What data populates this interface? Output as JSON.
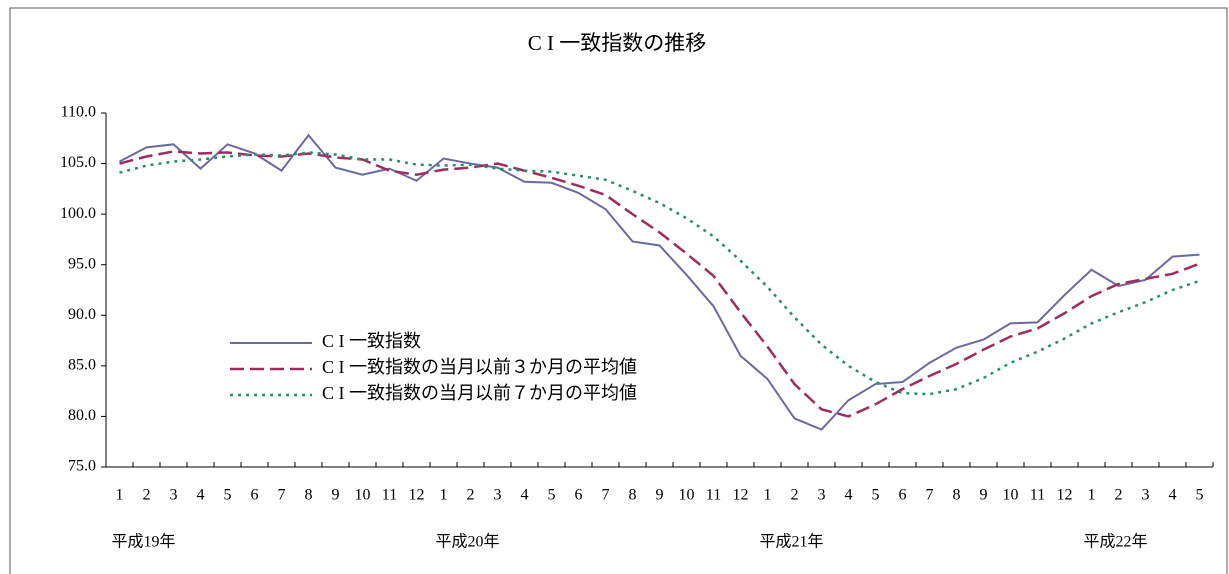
{
  "chart_data": {
    "type": "line",
    "title": "C I 一致指数の推移",
    "groups": [
      {
        "name": "平成19年",
        "months": [
          "1",
          "2",
          "3",
          "4",
          "5",
          "6",
          "7",
          "8",
          "9",
          "10",
          "11",
          "12"
        ]
      },
      {
        "name": "平成20年",
        "months": [
          "1",
          "2",
          "3",
          "4",
          "5",
          "6",
          "7",
          "8",
          "9",
          "10",
          "11",
          "12"
        ]
      },
      {
        "name": "平成21年",
        "months": [
          "1",
          "2",
          "3",
          "4",
          "5",
          "6",
          "7",
          "8",
          "9",
          "10",
          "11",
          "12"
        ]
      },
      {
        "name": "平成22年",
        "months": [
          "1",
          "2",
          "3",
          "4",
          "5"
        ]
      }
    ],
    "ylim": [
      75,
      110
    ],
    "yticks": [
      {
        "value": 75,
        "label": "75.0"
      },
      {
        "value": 80,
        "label": "80.0"
      },
      {
        "value": 85,
        "label": "85.0"
      },
      {
        "value": 90,
        "label": "90.0"
      },
      {
        "value": 95,
        "label": "95.0"
      },
      {
        "value": 100,
        "label": "100.0"
      },
      {
        "value": 105,
        "label": "105.0"
      },
      {
        "value": 110,
        "label": "110.0"
      }
    ],
    "grid": false,
    "legend": "center-left",
    "series": [
      {
        "name": "C I 一致指数",
        "color": "#6a6aa0",
        "dash": "solid",
        "values": [
          105.2,
          106.6,
          106.9,
          104.5,
          106.9,
          106.0,
          104.3,
          107.8,
          104.6,
          103.9,
          104.5,
          103.3,
          105.5,
          105.0,
          104.6,
          103.2,
          103.1,
          102.1,
          100.5,
          97.3,
          96.9,
          94.0,
          90.9,
          86.0,
          83.7,
          79.8,
          78.7,
          81.6,
          83.2,
          83.4,
          85.3,
          86.8,
          87.6,
          89.2,
          89.3,
          92.0,
          94.5,
          92.9,
          93.5,
          95.8,
          96.0
        ]
      },
      {
        "name": "C I 一致指数の当月以前３か月の平均値",
        "color": "#9b2d5f",
        "dash": "dashed",
        "values": [
          105.0,
          105.7,
          106.2,
          106.0,
          106.1,
          105.8,
          105.7,
          106.0,
          105.6,
          105.4,
          104.3,
          103.9,
          104.4,
          104.6,
          105.0,
          104.3,
          103.6,
          102.8,
          101.9,
          100.0,
          98.2,
          96.1,
          93.9,
          90.3,
          86.9,
          83.2,
          80.7,
          80.0,
          81.2,
          82.7,
          84.0,
          85.2,
          86.6,
          87.9,
          88.7,
          90.2,
          91.9,
          93.1,
          93.6,
          94.1,
          95.1
        ]
      },
      {
        "name": "C I 一致指数の当月以前７か月の平均値",
        "color": "#2e8b6a",
        "dash": "dotted",
        "values": [
          104.1,
          104.8,
          105.2,
          105.4,
          105.7,
          105.9,
          105.8,
          106.1,
          105.9,
          105.4,
          105.4,
          104.9,
          104.8,
          104.9,
          104.5,
          104.3,
          104.2,
          103.8,
          103.4,
          102.3,
          101.1,
          99.6,
          97.8,
          95.4,
          92.8,
          89.8,
          87.1,
          85.0,
          83.4,
          82.3,
          82.2,
          82.7,
          83.8,
          85.3,
          86.4,
          87.7,
          89.2,
          90.3,
          91.3,
          92.5,
          93.4
        ]
      }
    ]
  }
}
